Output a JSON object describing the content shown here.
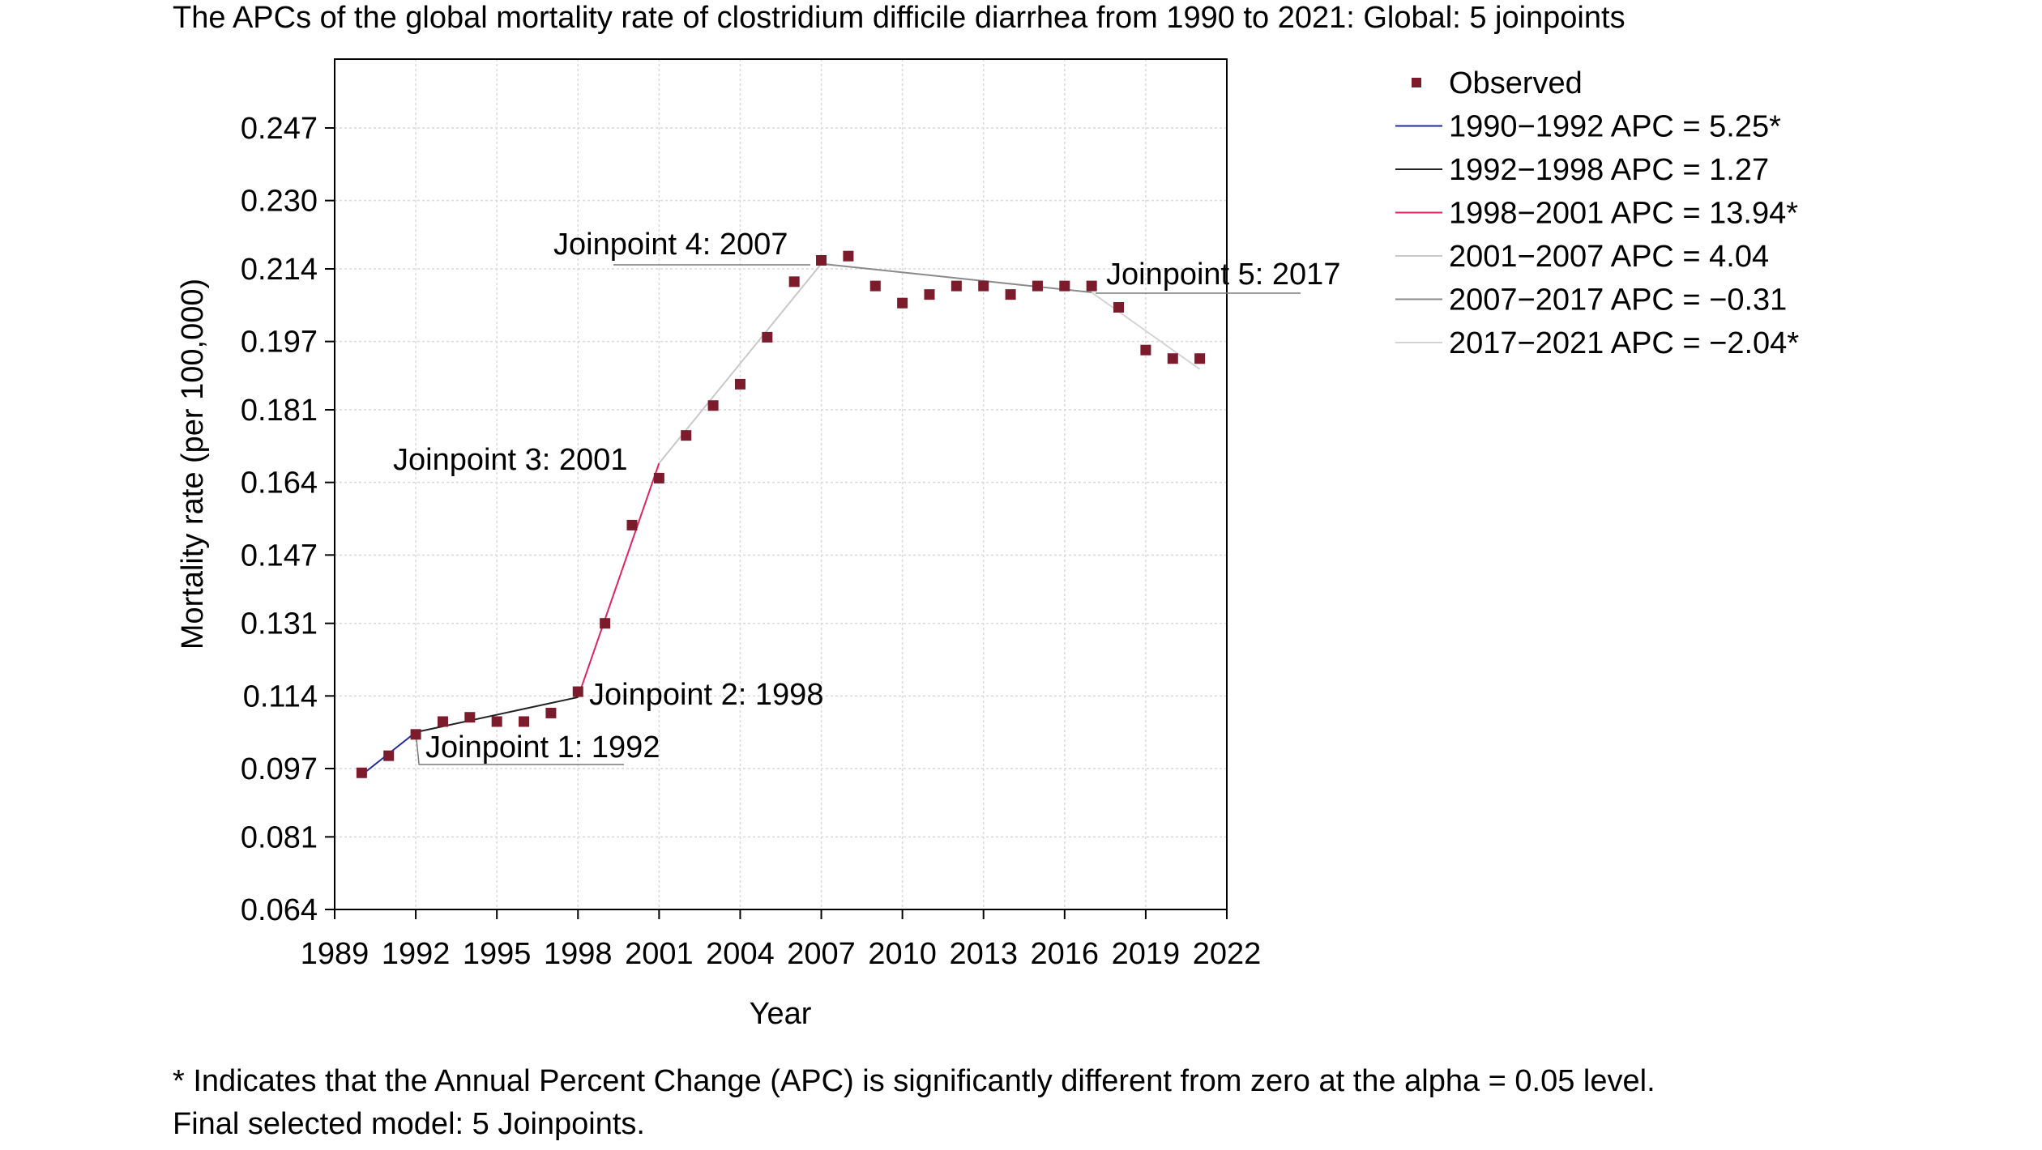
{
  "chart_data": {
    "type": "scatter",
    "title": "The APCs of the global mortality rate of clostridium difficile diarrhea from 1990 to 2021: Global: 5 joinpoints",
    "xlabel": "Year",
    "ylabel": "Mortality rate (per 100,000)",
    "xlim": [
      1989,
      2022
    ],
    "ylim": [
      0.064,
      0.264
    ],
    "x_ticks": [
      "1989",
      "1992",
      "1995",
      "1998",
      "2001",
      "2004",
      "2007",
      "2010",
      "2013",
      "2016",
      "2019",
      "2022"
    ],
    "y_ticks": [
      "0.064",
      "0.081",
      "0.097",
      "0.114",
      "0.131",
      "0.147",
      "0.164",
      "0.181",
      "0.197",
      "0.214",
      "0.230",
      "0.247"
    ],
    "grid": true,
    "legend_position": "right",
    "observed": {
      "name": "Observed",
      "color": "#7b1b2b",
      "x": [
        1990,
        1991,
        1992,
        1993,
        1994,
        1995,
        1996,
        1997,
        1998,
        1999,
        2000,
        2001,
        2002,
        2003,
        2004,
        2005,
        2006,
        2007,
        2008,
        2009,
        2010,
        2011,
        2012,
        2013,
        2014,
        2015,
        2016,
        2017,
        2018,
        2019,
        2020,
        2021
      ],
      "y": [
        0.096,
        0.1,
        0.105,
        0.108,
        0.109,
        0.108,
        0.108,
        0.11,
        0.115,
        0.131,
        0.154,
        0.165,
        0.175,
        0.182,
        0.187,
        0.198,
        0.211,
        0.216,
        0.217,
        0.21,
        0.206,
        0.208,
        0.21,
        0.21,
        0.208,
        0.21,
        0.21,
        0.21,
        0.205,
        0.195,
        0.193,
        0.193
      ]
    },
    "segments": [
      {
        "name": "1990−1992 APC = 5.25*",
        "color": "#1f2b9e",
        "x": [
          1990,
          1992
        ],
        "y": [
          0.0955,
          0.1055
        ]
      },
      {
        "name": "1992−1998 APC = 1.27",
        "color": "#222222",
        "x": [
          1992,
          1998
        ],
        "y": [
          0.1055,
          0.1137
        ]
      },
      {
        "name": "1998−2001 APC = 13.94*",
        "color": "#e0245e",
        "x": [
          1998,
          2001
        ],
        "y": [
          0.1137,
          0.1685
        ]
      },
      {
        "name": "2001−2007 APC = 4.04",
        "color": "#c8c8c8",
        "x": [
          2001,
          2007
        ],
        "y": [
          0.1685,
          0.2152
        ]
      },
      {
        "name": "2007−2017 APC = −0.31",
        "color": "#8a8a8a",
        "x": [
          2007,
          2017
        ],
        "y": [
          0.2152,
          0.2085
        ]
      },
      {
        "name": "2017−2021 APC = −2.04*",
        "color": "#d4d4d4",
        "x": [
          2017,
          2021
        ],
        "y": [
          0.2085,
          0.1905
        ]
      }
    ],
    "annotations": [
      {
        "text": "Joinpoint 1: 1992",
        "x": 1992,
        "y": 0.1055
      },
      {
        "text": "Joinpoint 2: 1998",
        "x": 1998,
        "y": 0.1137
      },
      {
        "text": "Joinpoint 3: 2001",
        "x": 2001,
        "y": 0.1685
      },
      {
        "text": "Joinpoint 4: 2007",
        "x": 2007,
        "y": 0.2152
      },
      {
        "text": "Joinpoint 5: 2017",
        "x": 2017,
        "y": 0.2085
      }
    ],
    "footnotes": [
      "* Indicates that the Annual Percent Change (APC) is significantly different from zero at the alpha = 0.05 level.",
      "Final selected model: 5 Joinpoints."
    ]
  }
}
